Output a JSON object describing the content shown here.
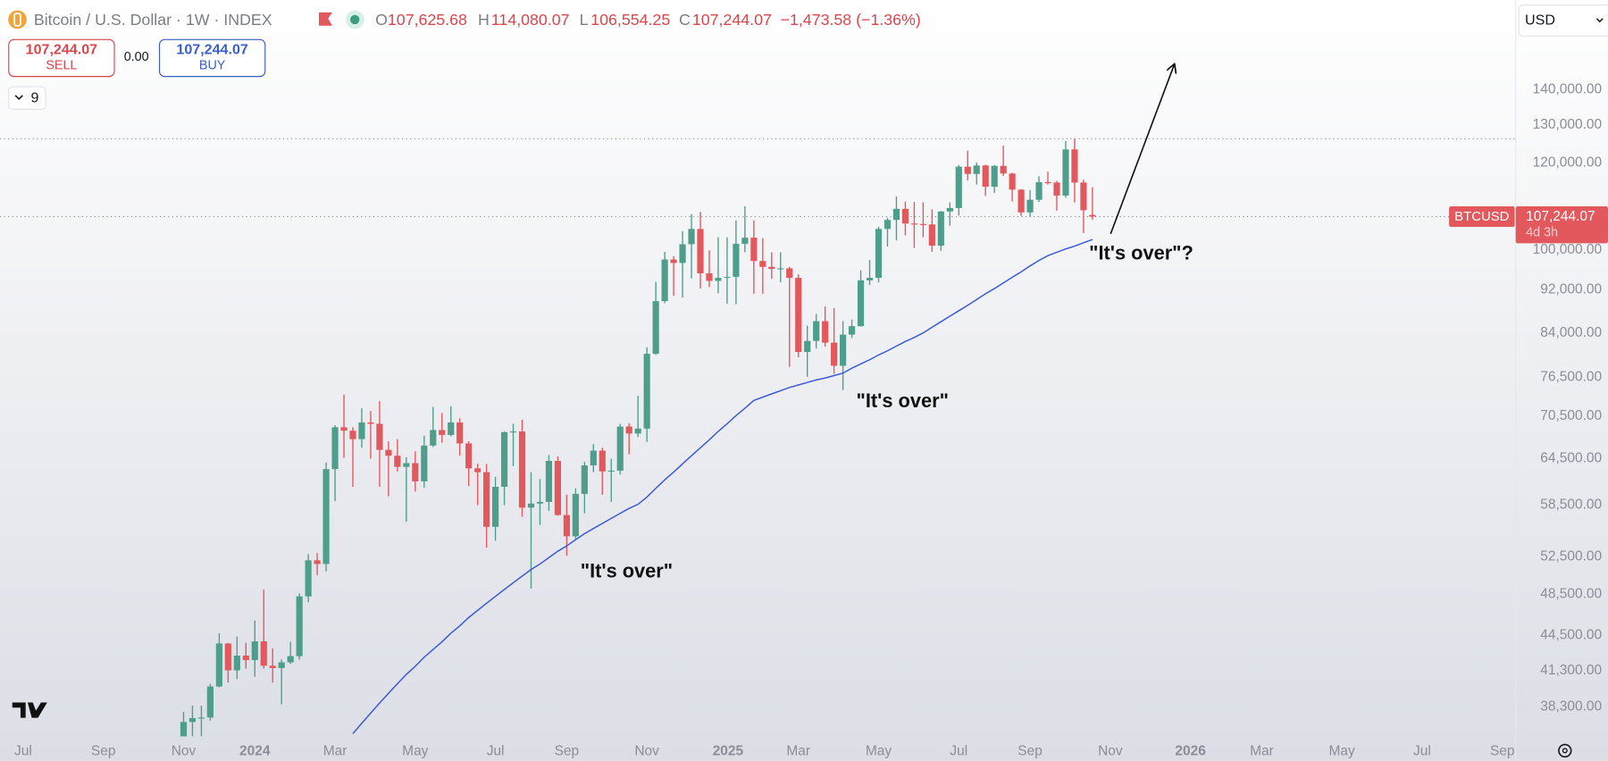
{
  "header": {
    "symbol": "Bitcoin / U.S. Dollar · 1W · INDEX",
    "ohlc": [
      {
        "key": "O",
        "value": "107,625.68"
      },
      {
        "key": "H",
        "value": "114,080.07"
      },
      {
        "key": "L",
        "value": "106,554.25"
      },
      {
        "key": "C",
        "value": "107,244.07"
      }
    ],
    "change": "−1,473.58 (−1.36%)",
    "currency": "USD"
  },
  "trade": {
    "sell_price": "107,244.07",
    "sell_label": "SELL",
    "spread": "0.00",
    "buy_price": "107,244.07",
    "buy_label": "BUY"
  },
  "indicators_count": "9",
  "chart_data": {
    "type": "candlestick",
    "categories": [
      null,
      null,
      null,
      null,
      null,
      null,
      null,
      null,
      null,
      null,
      null,
      null,
      null,
      null,
      null,
      null,
      null,
      null,
      null,
      null,
      null,
      null,
      null,
      null,
      null,
      null,
      null,
      null,
      null,
      null,
      null,
      null,
      null,
      null,
      null,
      null,
      null,
      null,
      null,
      null,
      null,
      null,
      null,
      null,
      null,
      null,
      null,
      null,
      null,
      null,
      null,
      null,
      null,
      null,
      null,
      null,
      null,
      null,
      null,
      null,
      null,
      null,
      null,
      null,
      null,
      null,
      null,
      null,
      null,
      null,
      null,
      null,
      null,
      null,
      null,
      null,
      null,
      null,
      null,
      null,
      null,
      null,
      null,
      null,
      null,
      null,
      null,
      null,
      null,
      null,
      null,
      null,
      null,
      null,
      null,
      null,
      null,
      null,
      null,
      null,
      null,
      null,
      null
    ],
    "open": [
      35000,
      37100,
      37400,
      37450,
      39970,
      43750,
      41350,
      42650,
      42250,
      43950,
      41750,
      41550,
      42050,
      42600,
      48300,
      52100,
      51700,
      63100,
      68900,
      68400,
      67200,
      69600,
      69400,
      65700,
      64900,
      63400,
      63900,
      61500,
      66300,
      68500,
      67800,
      69600,
      66600,
      63200,
      62700,
      55900,
      60800,
      68200,
      68300,
      58200,
      58700,
      58900,
      64200,
      57300,
      54800,
      59900,
      63600,
      65600,
      62800,
      62900,
      69000,
      68000,
      68700,
      80400,
      89800,
      98000,
      97300,
      101200,
      104500,
      95200,
      93700,
      94300,
      94500,
      101300,
      102600,
      97700,
      96500,
      96100,
      96200,
      94300,
      80700,
      82600,
      86100,
      82300,
      78400,
      83700,
      85200,
      93800,
      94300,
      104500,
      106500,
      109000,
      105700,
      105600,
      105500,
      100900,
      108400,
      109200,
      119100,
      117300,
      119400,
      114200,
      119300,
      117400,
      113500,
      108200,
      111100,
      115300,
      115200,
      112100,
      123500,
      115200,
      107625.68
    ],
    "high": [
      37900,
      38400,
      38400,
      40200,
      44700,
      43800,
      44400,
      43800,
      45900,
      49000,
      43300,
      42300,
      43900,
      48600,
      52800,
      52900,
      64000,
      69200,
      73800,
      68900,
      71700,
      71300,
      72800,
      66900,
      67200,
      64700,
      65500,
      67700,
      71900,
      71000,
      72000,
      70200,
      66900,
      63800,
      63800,
      62100,
      68300,
      69400,
      70000,
      62700,
      61800,
      65000,
      64800,
      59800,
      60600,
      64100,
      66500,
      66000,
      64500,
      69400,
      69500,
      73600,
      81500,
      93500,
      99600,
      98700,
      104000,
      107800,
      108300,
      99900,
      102700,
      102700,
      106400,
      109600,
      106400,
      102500,
      99500,
      99500,
      96500,
      95000,
      85300,
      87400,
      88800,
      88500,
      86100,
      86400,
      95800,
      97900,
      105000,
      107000,
      111900,
      110700,
      110600,
      110500,
      108900,
      108500,
      110500,
      119500,
      123200,
      120200,
      119600,
      119500,
      124500,
      117600,
      113600,
      113400,
      116700,
      117900,
      115600,
      125700,
      126300,
      115900,
      114080.07
    ],
    "low": [
      34500,
      35000,
      35700,
      37200,
      39900,
      40300,
      40600,
      41500,
      40800,
      41500,
      40300,
      38500,
      41900,
      42300,
      47700,
      50500,
      50900,
      59000,
      64600,
      60800,
      66000,
      64500,
      60800,
      59600,
      62800,
      56500,
      60200,
      60700,
      66100,
      66700,
      67600,
      64900,
      60900,
      58500,
      53500,
      54300,
      58500,
      63500,
      57100,
      49100,
      56100,
      57800,
      57200,
      52600,
      54500,
      57500,
      62700,
      59800,
      58900,
      62400,
      65100,
      67500,
      66800,
      80200,
      89400,
      90800,
      90500,
      94200,
      92200,
      92500,
      91300,
      89300,
      89200,
      99500,
      91200,
      91200,
      94100,
      93400,
      78200,
      79800,
      76600,
      81300,
      81600,
      77100,
      74500,
      83100,
      85100,
      92900,
      93400,
      100700,
      102000,
      103100,
      100400,
      102700,
      99600,
      99800,
      105200,
      107500,
      115700,
      114700,
      112000,
      112700,
      116800,
      110700,
      107400,
      107300,
      110600,
      114700,
      108600,
      111600,
      110500,
      103600,
      106554.25
    ],
    "close": [
      37100,
      37400,
      37450,
      39970,
      43750,
      41350,
      42650,
      42250,
      43950,
      41750,
      41550,
      42050,
      42600,
      48300,
      52100,
      51700,
      63100,
      68900,
      68400,
      67200,
      69600,
      69400,
      65700,
      64900,
      63400,
      63900,
      61500,
      66300,
      68500,
      67800,
      69600,
      66600,
      63200,
      62700,
      55900,
      60800,
      68200,
      68300,
      58200,
      58700,
      58900,
      64200,
      57300,
      54800,
      59900,
      63600,
      65600,
      62800,
      62900,
      69000,
      68000,
      68700,
      80400,
      89800,
      98000,
      97300,
      101200,
      104500,
      95200,
      93700,
      94300,
      94500,
      101300,
      102600,
      97700,
      96500,
      96100,
      96200,
      94300,
      80700,
      82600,
      86100,
      82300,
      78400,
      83700,
      85200,
      93800,
      94300,
      104500,
      106500,
      109000,
      105700,
      105600,
      105500,
      100900,
      108400,
      109200,
      119100,
      117300,
      119400,
      114200,
      119300,
      117400,
      113500,
      108200,
      111100,
      115300,
      115200,
      112100,
      123500,
      115200,
      108700,
      107244.07
    ],
    "up_color": "#4f9e8c",
    "down_color": "#e3585c",
    "moving_average": {
      "color": "#3c5ad6",
      "values": [
        null,
        null,
        null,
        null,
        null,
        null,
        null,
        null,
        null,
        null,
        null,
        null,
        null,
        null,
        null,
        null,
        null,
        null,
        null,
        36200,
        37000,
        37800,
        38600,
        39400,
        40200,
        41000,
        41700,
        42500,
        43200,
        43900,
        44700,
        45400,
        46200,
        46900,
        47600,
        48300,
        49000,
        49700,
        50400,
        51100,
        51700,
        52400,
        53100,
        53700,
        54400,
        55100,
        55700,
        56300,
        56900,
        57500,
        58100,
        58600,
        59500,
        60600,
        61700,
        62700,
        63800,
        64900,
        66000,
        67100,
        68300,
        69400,
        70600,
        71700,
        72900,
        73400,
        73900,
        74400,
        74900,
        75300,
        75700,
        76100,
        76400,
        76800,
        77200,
        78000,
        78700,
        79400,
        80200,
        80900,
        81700,
        82500,
        83200,
        84000,
        85000,
        86000,
        87000,
        88000,
        89000,
        90100,
        91200,
        92200,
        93300,
        94400,
        95500,
        96700,
        97800,
        98800,
        99500,
        100200,
        100800,
        101500,
        102200
      ]
    },
    "log": true,
    "ylim": [
      36000,
      169000
    ],
    "yticks": [
      {
        "value": 140000,
        "label": "140,000.00"
      },
      {
        "value": 130000,
        "label": "130,000.00"
      },
      {
        "value": 120000,
        "label": "120,000.00"
      },
      {
        "value": 100000,
        "label": "100,000.00"
      },
      {
        "value": 92000,
        "label": "92,000.00"
      },
      {
        "value": 84000,
        "label": "84,000.00"
      },
      {
        "value": 76500,
        "label": "76,500.00"
      },
      {
        "value": 70500,
        "label": "70,500.00"
      },
      {
        "value": 64500,
        "label": "64,500.00"
      },
      {
        "value": 58500,
        "label": "58,500.00"
      },
      {
        "value": 52500,
        "label": "52,500.00"
      },
      {
        "value": 48500,
        "label": "48,500.00"
      },
      {
        "value": 44500,
        "label": "44,500.00"
      },
      {
        "value": 41300,
        "label": "41,300.00"
      },
      {
        "value": 38300,
        "label": "38,300.00"
      }
    ],
    "xlim": [
      -20.6,
      149.5
    ],
    "xticks": [
      {
        "value": -18,
        "label": "Jul"
      },
      {
        "value": -9,
        "label": "Sep"
      },
      {
        "value": 0,
        "label": "Nov"
      },
      {
        "value": 8,
        "label": "2024"
      },
      {
        "value": 17,
        "label": "Mar"
      },
      {
        "value": 26,
        "label": "May"
      },
      {
        "value": 35,
        "label": "Jul"
      },
      {
        "value": 43,
        "label": "Sep"
      },
      {
        "value": 52,
        "label": "Nov"
      },
      {
        "value": 61.1,
        "label": "2025"
      },
      {
        "value": 69,
        "label": "Mar"
      },
      {
        "value": 78,
        "label": "May"
      },
      {
        "value": 87,
        "label": "Jul"
      },
      {
        "value": 95,
        "label": "Sep"
      },
      {
        "value": 104,
        "label": "Nov"
      },
      {
        "value": 113,
        "label": "2026"
      },
      {
        "value": 121,
        "label": "Mar"
      },
      {
        "value": 130,
        "label": "May"
      },
      {
        "value": 139,
        "label": "Jul"
      },
      {
        "value": 148,
        "label": "Sep"
      }
    ],
    "reference_line": 126300,
    "last_price": {
      "value": 107244.07,
      "label": "107,244.07"
    },
    "symbol_label": "BTCUSD",
    "countdown": "4d 3h",
    "annotations": [
      "\"It's over\"",
      "\"It's over\"",
      "\"It's over\"?"
    ]
  }
}
